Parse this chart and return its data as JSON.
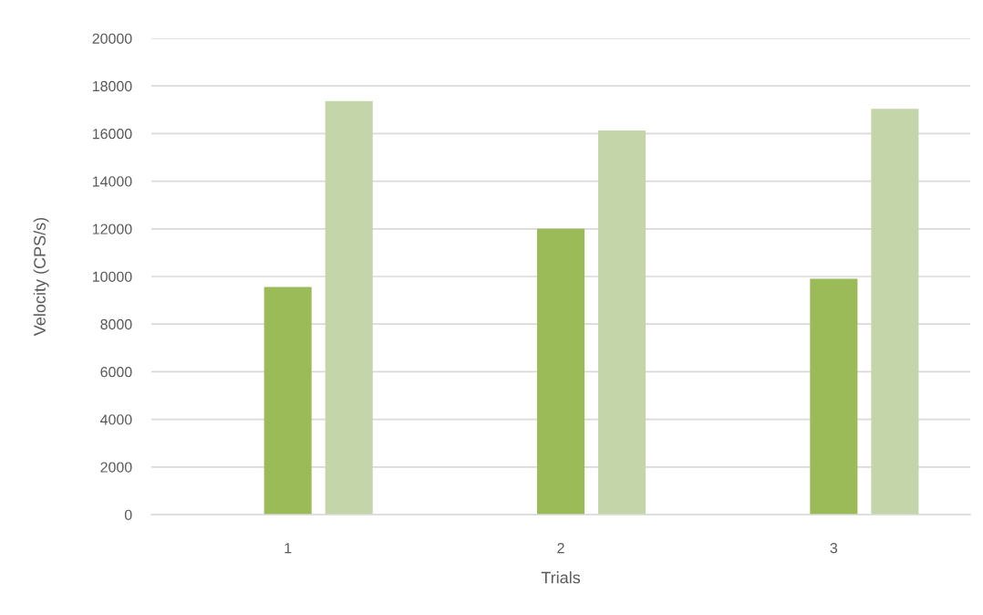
{
  "chart_data": {
    "type": "bar",
    "xlabel": "Trials",
    "ylabel": "Velocity (CPS/s)",
    "categories": [
      "1",
      "2",
      "3"
    ],
    "series": [
      {
        "color": "#9bbb59",
        "values": [
          9560,
          12000,
          9900
        ]
      },
      {
        "color": "#c5d5aa",
        "values": [
          17370,
          16130,
          17040
        ]
      }
    ],
    "ylim": [
      0,
      20000
    ],
    "yticks": [
      0,
      2000,
      4000,
      6000,
      8000,
      10000,
      12000,
      14000,
      16000,
      18000,
      20000
    ],
    "grid": "y"
  }
}
